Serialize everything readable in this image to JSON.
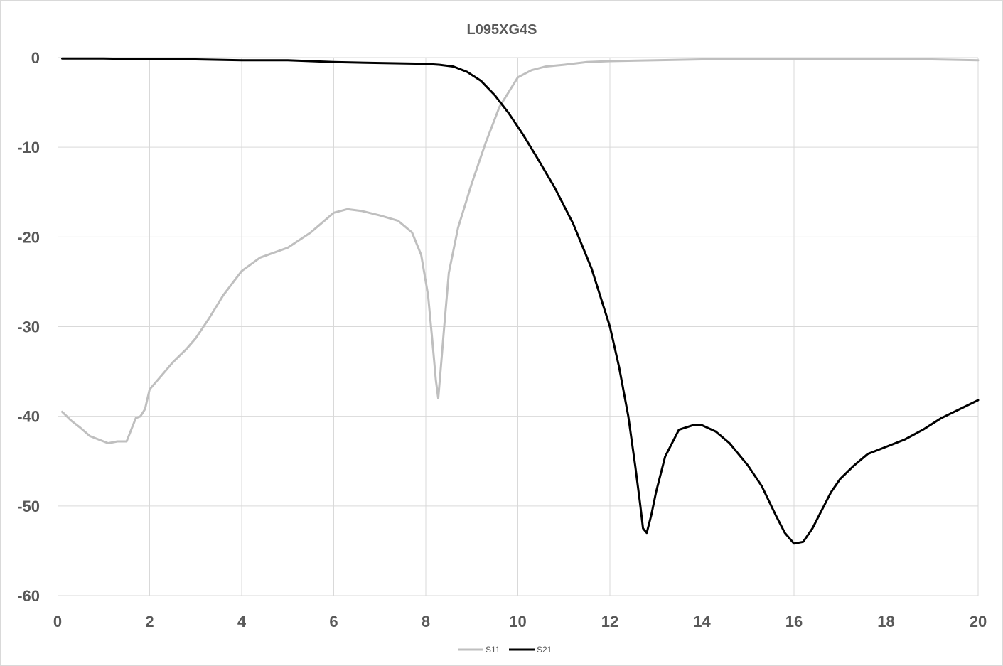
{
  "chart_data": {
    "type": "line",
    "title": "L095XG4S",
    "xlabel": "",
    "ylabel": "",
    "xlim": [
      0,
      20
    ],
    "ylim": [
      -60,
      0
    ],
    "xticks": [
      0,
      2,
      4,
      6,
      8,
      10,
      12,
      14,
      16,
      18,
      20
    ],
    "yticks": [
      0,
      -10,
      -20,
      -30,
      -40,
      -50,
      -60
    ],
    "xtick_labels": [
      "0",
      "2",
      "4",
      "6",
      "8",
      "10",
      "12",
      "14",
      "16",
      "18",
      "20"
    ],
    "ytick_labels": [
      "0",
      "-10",
      "-20",
      "-30",
      "-40",
      "-50",
      "-60"
    ],
    "grid": "vertical-and-horizontal",
    "legend": "bottom",
    "series": [
      {
        "name": "S11",
        "color": "#bfbfbf",
        "x": [
          0.1,
          0.3,
          0.5,
          0.7,
          0.9,
          1.1,
          1.3,
          1.5,
          1.6,
          1.7,
          1.8,
          1.9,
          2.0,
          2.2,
          2.5,
          2.8,
          3.0,
          3.3,
          3.6,
          4.0,
          4.4,
          5.0,
          5.5,
          6.0,
          6.3,
          6.6,
          7.0,
          7.4,
          7.7,
          7.9,
          8.05,
          8.15,
          8.22,
          8.27,
          8.32,
          8.4,
          8.5,
          8.7,
          9.0,
          9.3,
          9.6,
          10.0,
          10.3,
          10.6,
          11.0,
          11.5,
          12.0,
          13.0,
          14.0,
          15.0,
          16.0,
          17.0,
          18.0,
          19.0,
          20.0
        ],
        "y": [
          -39.5,
          -40.5,
          -41.3,
          -42.2,
          -42.6,
          -43.0,
          -42.8,
          -42.8,
          -41.5,
          -40.2,
          -40.0,
          -39.2,
          -37.0,
          -35.8,
          -34.0,
          -32.5,
          -31.3,
          -29.0,
          -26.5,
          -23.8,
          -22.3,
          -21.2,
          -19.5,
          -17.3,
          -16.9,
          -17.1,
          -17.6,
          -18.2,
          -19.5,
          -22.0,
          -26.5,
          -32.0,
          -36.0,
          -38.0,
          -35.0,
          -30.0,
          -24.0,
          -19.0,
          -14.0,
          -9.5,
          -5.5,
          -2.2,
          -1.4,
          -1.0,
          -0.8,
          -0.5,
          -0.4,
          -0.3,
          -0.2,
          -0.2,
          -0.2,
          -0.2,
          -0.2,
          -0.2,
          -0.3
        ]
      },
      {
        "name": "S21",
        "color": "#000000",
        "x": [
          0.1,
          1.0,
          2.0,
          3.0,
          4.0,
          5.0,
          6.0,
          7.0,
          8.0,
          8.3,
          8.6,
          8.9,
          9.2,
          9.5,
          9.8,
          10.1,
          10.4,
          10.8,
          11.2,
          11.6,
          12.0,
          12.2,
          12.4,
          12.55,
          12.65,
          12.72,
          12.8,
          12.9,
          13.0,
          13.2,
          13.5,
          13.8,
          14.0,
          14.3,
          14.6,
          15.0,
          15.3,
          15.6,
          15.8,
          16.0,
          16.2,
          16.4,
          16.6,
          16.8,
          17.0,
          17.3,
          17.6,
          18.0,
          18.4,
          18.8,
          19.2,
          19.6,
          20.0
        ],
        "y": [
          -0.1,
          -0.1,
          -0.2,
          -0.2,
          -0.3,
          -0.3,
          -0.5,
          -0.6,
          -0.7,
          -0.8,
          -1.0,
          -1.6,
          -2.6,
          -4.2,
          -6.2,
          -8.5,
          -11.0,
          -14.5,
          -18.5,
          -23.5,
          -30.0,
          -34.5,
          -40.0,
          -45.5,
          -49.5,
          -52.5,
          -53.0,
          -51.0,
          -48.5,
          -44.5,
          -41.5,
          -41.0,
          -41.0,
          -41.7,
          -43.0,
          -45.5,
          -47.8,
          -51.0,
          -53.0,
          -54.2,
          -54.0,
          -52.5,
          -50.5,
          -48.5,
          -47.0,
          -45.5,
          -44.2,
          -43.4,
          -42.6,
          -41.5,
          -40.2,
          -39.2,
          -38.2
        ]
      }
    ]
  }
}
